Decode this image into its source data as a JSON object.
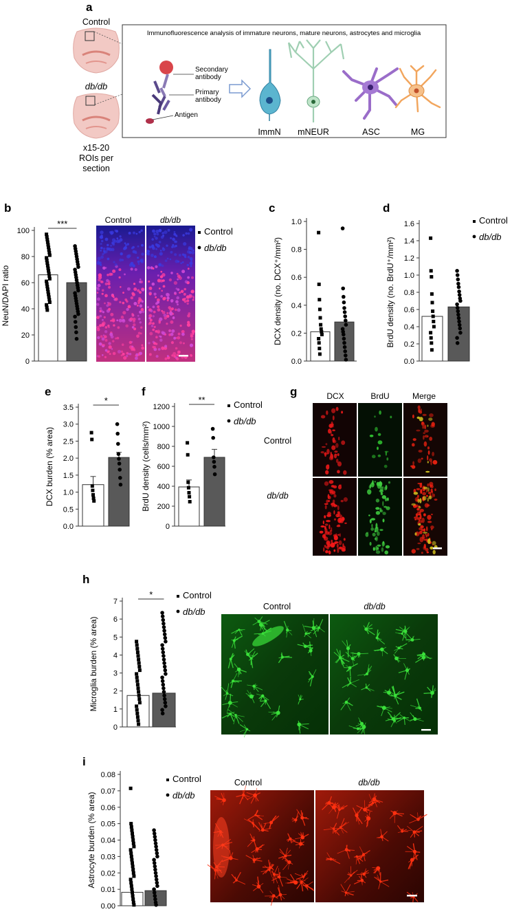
{
  "panel_letters": {
    "a": "a",
    "b": "b",
    "c": "c",
    "d": "d",
    "e": "e",
    "f": "f",
    "g": "g",
    "h": "h",
    "i": "i"
  },
  "panel_a": {
    "brain_control": "Control",
    "brain_dbdb": "db/db",
    "rois_line1": "x15-20",
    "rois_line2": "ROIs per",
    "rois_line3": "section",
    "box_title": "Immunofluorescence analysis of immature neurons, mature neurons, astrocytes and microglia",
    "secondary_antibody_line1": "Secondary",
    "secondary_antibody_line2": "antibody",
    "primary_antibody_line1": "Primary",
    "primary_antibody_line2": "antibody",
    "antigen": "Antigen",
    "cells": [
      "ImmN",
      "mNEUR",
      "ASC",
      "MG"
    ],
    "colors": {
      "immn": "#5bb5cf",
      "mneur": "#9fcfb2",
      "asc": "#9a6dc9",
      "mg": "#f2a65e",
      "antibody": "#5b4a8c",
      "secondary_dot": "#d9454a",
      "brain": "#f2c9c4"
    }
  },
  "image_panels": {
    "b": {
      "labels": [
        "Control",
        "db/db"
      ]
    },
    "g": {
      "cols": [
        "DCX",
        "BrdU",
        "Merge"
      ],
      "rows": [
        "Control",
        "db/db"
      ]
    },
    "h": {
      "labels": [
        "Control",
        "db/db"
      ]
    },
    "i": {
      "labels": [
        "Control",
        "db/db"
      ]
    }
  },
  "legend": {
    "control": "Control",
    "dbdb": "db/db"
  },
  "chart_data": [
    {
      "panel": "b",
      "type": "bar",
      "ylabel": "NeuN/DAPI ratio",
      "ylim": [
        0,
        100
      ],
      "yticks": [
        0,
        20,
        40,
        60,
        80,
        100
      ],
      "categories": [
        "Control",
        "db/db"
      ],
      "values": [
        66,
        60
      ],
      "significance": "***",
      "points": [
        [
          97,
          95,
          93,
          91,
          89,
          87,
          85,
          83,
          81,
          79,
          77,
          75,
          73,
          71,
          69,
          67,
          65,
          63,
          61,
          59,
          57,
          55,
          53,
          51,
          49,
          47,
          45,
          43,
          41,
          39
        ],
        [
          88,
          86,
          84,
          82,
          80,
          78,
          76,
          74,
          72,
          70,
          68,
          66,
          64,
          62,
          60,
          58,
          56,
          54,
          52,
          50,
          48,
          46,
          44,
          42,
          40,
          38,
          36,
          34,
          30,
          26,
          22,
          17
        ]
      ]
    },
    {
      "panel": "c",
      "type": "bar",
      "ylabel": "DCX density (no. DCX⁺/mm²)",
      "ylim": [
        0,
        1.0
      ],
      "yticks": [
        0.0,
        0.2,
        0.4,
        0.6,
        0.8,
        1.0
      ],
      "categories": [
        "Control",
        "db/db"
      ],
      "values": [
        0.21,
        0.28
      ],
      "points": [
        [
          0.92,
          0.55,
          0.44,
          0.37,
          0.31,
          0.26,
          0.23,
          0.21,
          0.19,
          0.16,
          0.13,
          0.09,
          0.05
        ],
        [
          0.95,
          0.52,
          0.46,
          0.42,
          0.38,
          0.35,
          0.32,
          0.29,
          0.26,
          0.23,
          0.21,
          0.19,
          0.16,
          0.13,
          0.1,
          0.07,
          0.04,
          0.01
        ]
      ]
    },
    {
      "panel": "d",
      "type": "bar",
      "ylabel": "BrdU density (no. BrdU⁺/mm²)",
      "ylim": [
        0,
        1.6
      ],
      "yticks": [
        0.0,
        0.2,
        0.4,
        0.6,
        0.8,
        1.0,
        1.2,
        1.4,
        1.6
      ],
      "categories": [
        "Control",
        "db/db"
      ],
      "values": [
        0.52,
        0.63
      ],
      "points": [
        [
          1.43,
          1.05,
          0.98,
          0.78,
          0.68,
          0.58,
          0.52,
          0.46,
          0.4,
          0.33,
          0.27,
          0.21,
          0.13
        ],
        [
          1.05,
          1.0,
          0.95,
          0.9,
          0.86,
          0.81,
          0.77,
          0.73,
          0.7,
          0.66,
          0.62,
          0.58,
          0.54,
          0.5,
          0.46,
          0.42,
          0.38,
          0.33,
          0.27,
          0.21
        ]
      ]
    },
    {
      "panel": "e",
      "type": "bar",
      "ylabel": "DCX burden (% area)",
      "ylim": [
        0,
        3.5
      ],
      "yticks": [
        0.0,
        0.5,
        1.0,
        1.5,
        2.0,
        2.5,
        3.0,
        3.5
      ],
      "categories": [
        "Control",
        "db/db"
      ],
      "values": [
        1.22,
        2.02
      ],
      "errors": [
        0.24,
        0.15
      ],
      "significance": "*",
      "points": [
        [
          2.75,
          2.55,
          1.18,
          1.05,
          0.92,
          0.82,
          0.74
        ],
        [
          3.0,
          2.72,
          2.42,
          2.12,
          1.98,
          1.84,
          1.66,
          1.42,
          1.22
        ]
      ]
    },
    {
      "panel": "f",
      "type": "bar",
      "ylabel": "BrdU density (cells/mm²)",
      "ylim": [
        0,
        1200
      ],
      "yticks": [
        0,
        200,
        400,
        600,
        800,
        1000,
        1200
      ],
      "categories": [
        "Control",
        "db/db"
      ],
      "values": [
        393,
        690
      ],
      "errors": [
        70,
        80
      ],
      "significance": "**",
      "points": [
        [
          835,
          715,
          440,
          385,
          335,
          295,
          245
        ],
        [
          975,
          885,
          690,
          645,
          595,
          520
        ]
      ]
    },
    {
      "panel": "h",
      "type": "bar",
      "ylabel": "Microglia burden (% area)",
      "ylim": [
        0,
        7
      ],
      "yticks": [
        0,
        1,
        2,
        3,
        4,
        5,
        6,
        7
      ],
      "categories": [
        "Control",
        "db/db"
      ],
      "values": [
        1.75,
        1.88
      ],
      "significance": "*",
      "points": [
        [
          4.75,
          4.55,
          4.35,
          4.15,
          3.95,
          3.75,
          3.55,
          3.35,
          3.15,
          2.95,
          2.75,
          2.55,
          2.35,
          2.15,
          1.95,
          1.75,
          1.55,
          1.35,
          1.15,
          0.95,
          0.75,
          0.55,
          0.35,
          0.15
        ],
        [
          6.35,
          6.15,
          5.95,
          5.75,
          5.55,
          5.35,
          5.15,
          4.95,
          4.75,
          4.55,
          4.35,
          4.15,
          3.95,
          3.75,
          3.55,
          3.35,
          3.15,
          2.95,
          2.75,
          2.55,
          2.35,
          2.15,
          1.95,
          1.75,
          1.55,
          1.35,
          1.15,
          0.95,
          0.75
        ]
      ]
    },
    {
      "panel": "i",
      "type": "bar",
      "ylabel": "Astrocyte burden (% area)",
      "ylim": [
        0,
        0.08
      ],
      "yticks": [
        0.0,
        0.01,
        0.02,
        0.03,
        0.04,
        0.05,
        0.06,
        0.07,
        0.08
      ],
      "categories": [
        "Control",
        "db/db"
      ],
      "values": [
        0.0082,
        0.0092
      ],
      "points": [
        [
          0.0715,
          0.05,
          0.048,
          0.046,
          0.044,
          0.042,
          0.04,
          0.038,
          0.036,
          0.034,
          0.032,
          0.03,
          0.028,
          0.026,
          0.024,
          0.022,
          0.02,
          0.018,
          0.016,
          0.014,
          0.012,
          0.01,
          0.008,
          0.006,
          0.004,
          0.002,
          0.0005
        ],
        [
          0.046,
          0.044,
          0.042,
          0.04,
          0.038,
          0.036,
          0.034,
          0.032,
          0.03,
          0.028,
          0.026,
          0.024,
          0.022,
          0.02,
          0.018,
          0.016,
          0.014,
          0.012,
          0.01,
          0.008,
          0.006,
          0.004,
          0.002,
          0.0005
        ]
      ]
    }
  ]
}
